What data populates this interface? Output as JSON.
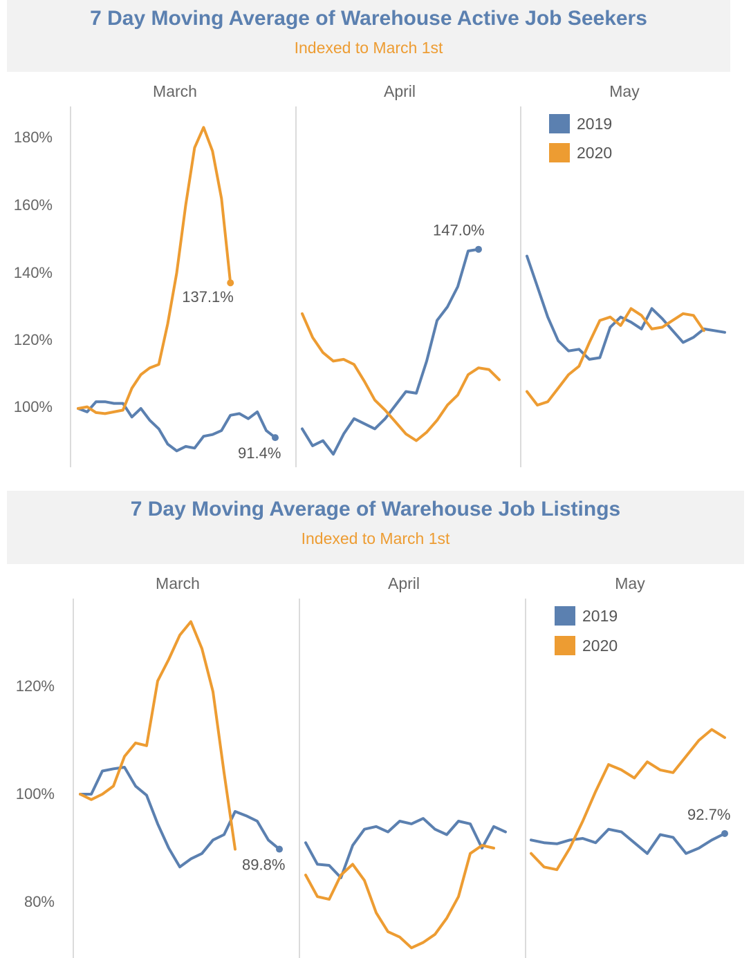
{
  "colors": {
    "y2019": "#5b80b0",
    "y2020": "#ed9c32",
    "title": "#5b80b0",
    "subtitle": "#ed9c32"
  },
  "legend": [
    {
      "label": "2019",
      "color": "#5b80b0"
    },
    {
      "label": "2020",
      "color": "#ed9c32"
    }
  ],
  "charts": [
    {
      "title": "7 Day Moving Average of Warehouse Active Job Seekers",
      "subtitle": "Indexed to March 1st"
    },
    {
      "title": "7 Day Moving Average of Warehouse Job Listings",
      "subtitle": "Indexed to March 1st"
    }
  ],
  "chart_data": [
    {
      "type": "line",
      "title": "7 Day Moving Average of Warehouse Active Job Seekers",
      "subtitle": "Indexed to March 1st",
      "ylim": [
        82,
        185
      ],
      "yticks": [
        100,
        120,
        140,
        160,
        180
      ],
      "ytick_labels": [
        "100%",
        "120%",
        "140%",
        "160%",
        "180%"
      ],
      "panels": [
        {
          "month": "March",
          "series": [
            {
              "name": "2019",
              "values": [
                100.0,
                99.0,
                102.0,
                102.0,
                101.5,
                101.5,
                97.5,
                100.0,
                96.5,
                94.0,
                89.5,
                87.5,
                88.8,
                88.3,
                91.8,
                92.3,
                93.5,
                98.0,
                98.5,
                97.0,
                99.0,
                93.5,
                91.4
              ]
            },
            {
              "name": "2020",
              "values": [
                100.0,
                100.5,
                98.8,
                98.5,
                99.0,
                99.5,
                106.0,
                110.0,
                112.0,
                113.0,
                125.0,
                140.0,
                160.0,
                177.0,
                183.0,
                176.0,
                162.0,
                137.1
              ]
            }
          ],
          "annotations": [
            {
              "series": "2020",
              "text": "137.1%",
              "value": 137.1
            },
            {
              "series": "2019",
              "text": "91.4%",
              "value": 91.4
            }
          ]
        },
        {
          "month": "April",
          "series": [
            {
              "name": "2019",
              "values": [
                94.0,
                89.0,
                90.5,
                86.5,
                92.5,
                97.0,
                95.5,
                94.0,
                97.0,
                101.0,
                105.0,
                104.5,
                114.0,
                126.0,
                130.0,
                136.0,
                146.5,
                147.0
              ]
            },
            {
              "name": "2020",
              "values": [
                128.0,
                121.0,
                116.5,
                114.0,
                114.5,
                113.0,
                108.0,
                102.5,
                99.5,
                96.0,
                92.5,
                90.5,
                93.0,
                96.5,
                101.0,
                104.0,
                110.0,
                112.0,
                111.5,
                108.5
              ]
            }
          ],
          "annotations": [
            {
              "series": "2019",
              "text": "147.0%",
              "value": 147.0
            }
          ]
        },
        {
          "month": "May",
          "series": [
            {
              "name": "2019",
              "values": [
                145.0,
                136.0,
                127.0,
                120.0,
                117.0,
                117.5,
                114.5,
                115.0,
                124.0,
                127.0,
                125.5,
                123.5,
                129.5,
                126.5,
                123.0,
                119.5,
                121.0,
                123.5,
                123.0,
                122.5
              ]
            },
            {
              "name": "2020",
              "values": [
                105.0,
                101.0,
                102.0,
                106.0,
                110.0,
                112.5,
                119.5,
                126.0,
                127.0,
                124.5,
                129.5,
                127.5,
                123.5,
                124.0,
                126.0,
                128.0,
                127.5,
                123.0
              ]
            }
          ],
          "annotations": []
        }
      ]
    },
    {
      "type": "line",
      "title": "7 Day Moving Average of Warehouse Job Listings",
      "subtitle": "Indexed to March 1st",
      "ylim": [
        73,
        133
      ],
      "yticks": [
        80,
        100,
        120
      ],
      "ytick_labels": [
        "80%",
        "100%",
        "120%"
      ],
      "panels": [
        {
          "month": "March",
          "series": [
            {
              "name": "2019",
              "values": [
                100.0,
                100.0,
                104.3,
                104.7,
                105.0,
                101.5,
                99.8,
                94.5,
                90.0,
                86.5,
                88.0,
                89.0,
                91.5,
                92.5,
                96.8,
                96.0,
                95.0,
                91.5,
                89.8
              ]
            },
            {
              "name": "2020",
              "values": [
                100.0,
                99.0,
                100.0,
                101.5,
                107.0,
                109.5,
                109.0,
                121.0,
                125.0,
                129.5,
                132.0,
                127.0,
                119.0,
                104.0,
                89.8
              ]
            }
          ],
          "annotations": [
            {
              "series": "2019",
              "text": "89.8%",
              "value": 89.8
            }
          ]
        },
        {
          "month": "April",
          "series": [
            {
              "name": "2019",
              "values": [
                91.0,
                87.0,
                86.8,
                84.5,
                90.5,
                93.5,
                94.0,
                93.0,
                95.0,
                94.5,
                95.5,
                93.5,
                92.5,
                95.0,
                94.5,
                90.0,
                94.0,
                93.0
              ]
            },
            {
              "name": "2020",
              "values": [
                85.0,
                81.0,
                80.5,
                85.0,
                87.0,
                84.0,
                78.0,
                74.5,
                73.5,
                71.5,
                72.5,
                74.0,
                77.0,
                81.0,
                89.0,
                90.5,
                90.0
              ]
            }
          ],
          "annotations": []
        },
        {
          "month": "May",
          "series": [
            {
              "name": "2019",
              "values": [
                91.5,
                91.0,
                90.8,
                91.5,
                91.8,
                91.0,
                93.5,
                93.0,
                91.0,
                89.0,
                92.5,
                92.0,
                89.0,
                90.0,
                91.5,
                92.7
              ]
            },
            {
              "name": "2020",
              "values": [
                89.0,
                86.5,
                86.0,
                90.0,
                95.0,
                100.5,
                105.5,
                104.5,
                103.0,
                106.0,
                104.5,
                104.0,
                107.0,
                110.0,
                112.0,
                110.5
              ]
            }
          ],
          "annotations": [
            {
              "series": "2019",
              "text": "92.7%",
              "value": 92.7
            }
          ]
        }
      ]
    }
  ]
}
